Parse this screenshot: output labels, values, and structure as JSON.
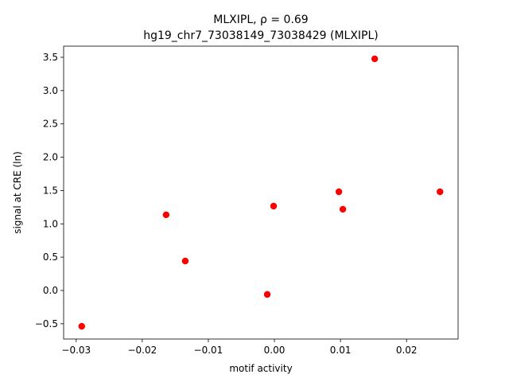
{
  "chart_data": {
    "type": "scatter",
    "title": "MLXIPL, ρ = 0.69",
    "subtitle": "hg19_chr7_73038149_73038429 (MLXIPL)",
    "xlabel": "motif activity",
    "ylabel": "signal at CRE (ln)",
    "x": [
      -0.02916,
      -0.01639,
      -0.01349,
      -0.00108,
      -0.00012,
      0.00976,
      0.01036,
      0.01518,
      0.02506
    ],
    "values": [
      -0.538,
      1.135,
      0.442,
      -0.06,
      1.266,
      1.481,
      1.219,
      3.477,
      1.481
    ],
    "color": "#ff0000",
    "xlim": [
      -0.0319,
      0.0278
    ],
    "xticks": [
      {
        "value": -0.03,
        "label": "−0.03"
      },
      {
        "value": -0.02,
        "label": "−0.02"
      },
      {
        "value": -0.01,
        "label": "−0.01"
      },
      {
        "value": 0,
        "label": "0.00"
      },
      {
        "value": 0.01,
        "label": "0.01"
      },
      {
        "value": 0.02,
        "label": "0.02"
      }
    ],
    "ylim": [
      -0.729,
      3.667
    ],
    "yticks": [
      {
        "value": -0.5,
        "label": "−0.5"
      },
      {
        "value": 0,
        "label": "0.0"
      },
      0.5,
      {
        "value": 1,
        "label": "1.0"
      },
      1.5,
      {
        "value": 2,
        "label": "2.0"
      },
      2.5,
      {
        "value": 3,
        "label": "3.0"
      },
      3.5
    ],
    "grid": false
  }
}
